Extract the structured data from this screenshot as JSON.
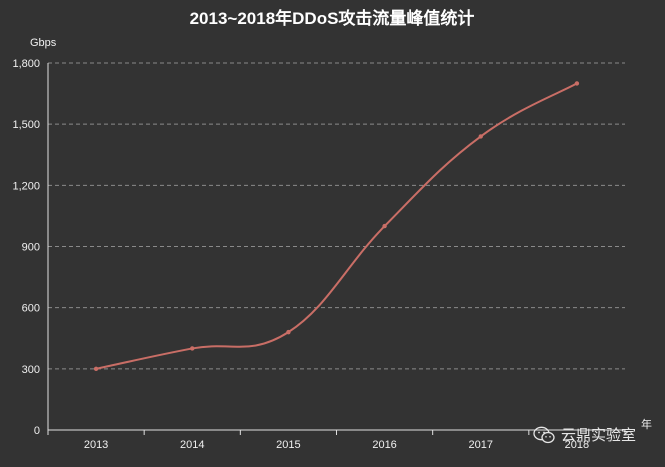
{
  "chart_data": {
    "type": "line",
    "title": "2013~2018年DDoS攻击流量峰值统计",
    "ylabel": "Gbps",
    "xlabel": "",
    "categories": [
      "2013",
      "2014",
      "2015",
      "2016",
      "2017",
      "2018"
    ],
    "x_tick_labels": [
      "2013",
      "2014",
      "2015",
      "2016",
      "2017",
      "2018"
    ],
    "x_axis_suffix": "年",
    "series": [
      {
        "values": [
          300,
          400,
          480,
          1000,
          1440,
          1700
        ]
      }
    ],
    "ylim": [
      0,
      1800
    ],
    "y_ticks": [
      0,
      300,
      600,
      900,
      1200,
      1500,
      1800
    ],
    "y_tick_labels": [
      "0",
      "300",
      "600",
      "900",
      "1,200",
      "1,500",
      "1,800"
    ],
    "grid": true,
    "line_color": "#c96e66",
    "background": "#333333"
  },
  "watermark": {
    "icon": "wechat-icon",
    "text": "云鼎实验室"
  }
}
